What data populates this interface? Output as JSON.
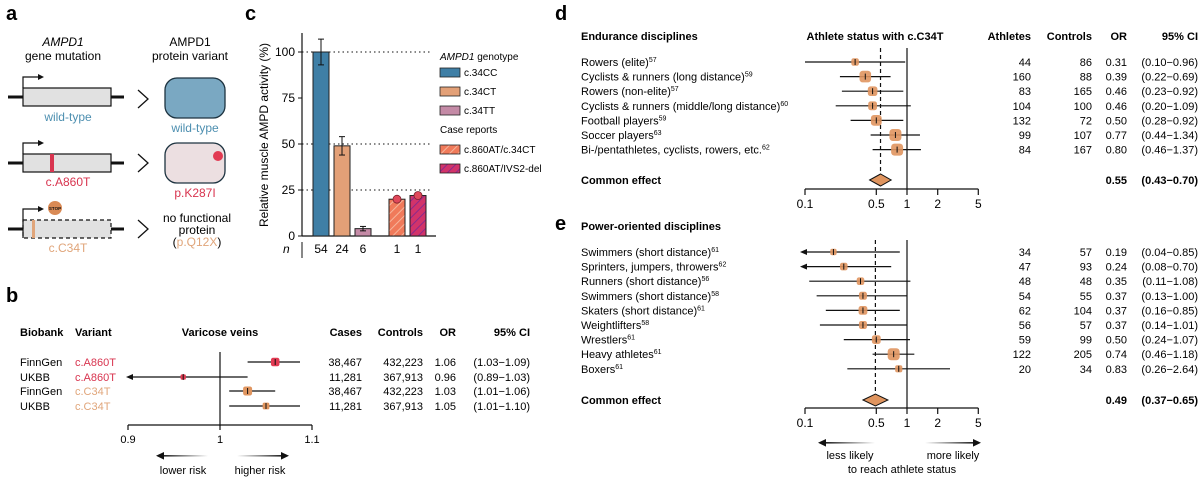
{
  "panels": {
    "a": {
      "label": "a",
      "col1_title_italic": "AMPD1",
      "col1_title": "gene mutation",
      "col2_title_line1": "AMPD1",
      "col2_title_line2": "protein variant",
      "rows": [
        {
          "gene_label": "wild-type",
          "gene_color": "#4d8fb0",
          "protein_label": "wild-type",
          "protein_color": "#4d8fb0"
        },
        {
          "gene_label": "c.A860T",
          "gene_color": "#d8344f",
          "protein_label": "p.K287I",
          "protein_color": "#d8344f"
        },
        {
          "gene_label": "c.C34T",
          "gene_color": "#e0a57a",
          "protein_line1": "no functional",
          "protein_line2": "protein",
          "protein_label": "p.Q12X",
          "protein_color": "#e0a57a",
          "stop_label": "STOP"
        }
      ]
    },
    "b": {
      "label": "b",
      "headers": {
        "biobank": "Biobank",
        "variant": "Variant",
        "plot": "Varicose veins",
        "cases": "Cases",
        "controls": "Controls",
        "or": "OR",
        "ci": "95% CI"
      },
      "arrow_left": "lower risk",
      "arrow_right": "higher risk"
    },
    "c": {
      "label": "c",
      "n_label": "n"
    },
    "d": {
      "label": "d"
    },
    "e": {
      "label": "e"
    }
  },
  "chart_data": [
    {
      "id": "c",
      "type": "bar",
      "title": "",
      "ylabel": "Relative muscle AMPD activity (%)",
      "xlabel": "",
      "ylim": [
        0,
        110
      ],
      "yticks": [
        0,
        25,
        50,
        75,
        100
      ],
      "reference_lines": [
        25,
        50,
        100
      ],
      "categories": [
        "c.34CC",
        "c.34CT",
        "c.34TT",
        "c.860AT/c.34CT",
        "c.860AT/IVS2-del"
      ],
      "values": [
        100,
        49,
        4,
        20,
        22
      ],
      "error": [
        7,
        5,
        1.2,
        null,
        null
      ],
      "n": [
        "54",
        "24",
        "6",
        "1",
        "1"
      ],
      "colors": [
        "#3f7fa6",
        "#e3a077",
        "#c48aa6",
        "#f07a5a",
        "#c5336e"
      ],
      "point_markers": [
        null,
        null,
        null,
        20,
        22
      ],
      "legend": {
        "group1_title": "AMPD1 genotype",
        "group1": [
          "c.34CC",
          "c.34CT",
          "c.34TT"
        ],
        "group2_title": "Case reports",
        "group2": [
          "c.860AT/c.34CT",
          "c.860AT/IVS2-del"
        ],
        "placement": "right"
      }
    },
    {
      "id": "b",
      "type": "forest",
      "xlim": [
        0.9,
        1.1
      ],
      "xticks": [
        "0.9",
        "1",
        "1.1"
      ],
      "rows": [
        {
          "biobank": "FinnGen",
          "variant": "c.A860T",
          "variant_color": "#d8344f",
          "cases": "38,467",
          "controls": "432,223",
          "or": 1.06,
          "or_text": "1.06",
          "lo": 1.03,
          "hi": 1.09,
          "ci_text": "(1.03−1.09)",
          "weight": 0.9
        },
        {
          "biobank": "UKBB",
          "variant": "c.A860T",
          "variant_color": "#d8344f",
          "cases": "11,281",
          "controls": "367,913",
          "or": 0.96,
          "or_text": "0.96",
          "lo": 0.89,
          "hi": 1.03,
          "ci_text": "(0.89−1.03)",
          "weight": 0.25
        },
        {
          "biobank": "FinnGen",
          "variant": "c.C34T",
          "variant_color": "#e0a57a",
          "cases": "38,467",
          "controls": "432,223",
          "or": 1.03,
          "or_text": "1.03",
          "lo": 1.01,
          "hi": 1.06,
          "ci_text": "(1.01−1.06)",
          "weight": 1.0
        },
        {
          "biobank": "UKBB",
          "variant": "c.C34T",
          "variant_color": "#e0a57a",
          "cases": "11,281",
          "controls": "367,913",
          "or": 1.05,
          "or_text": "1.05",
          "lo": 1.01,
          "hi": 1.1,
          "ci_text": "(1.01−1.10)",
          "weight": 0.55
        }
      ]
    },
    {
      "id": "d",
      "type": "forest",
      "title": "Endurance disciplines",
      "plot_header": "Athlete status with c.C34T",
      "headers": {
        "athletes": "Athletes",
        "controls": "Controls",
        "or": "OR",
        "ci": "95% CI"
      },
      "scale": "log",
      "xlim": [
        0.1,
        5
      ],
      "xticks": [
        "0.1",
        "0.5",
        "1",
        "2",
        "5"
      ],
      "rows": [
        {
          "label": "Rowers (elite)",
          "ref": "57",
          "athletes": "44",
          "controls": "86",
          "or": 0.31,
          "or_text": "0.31",
          "lo": 0.1,
          "hi": 0.96,
          "ci_text": "(0.10−0.96)",
          "weight": 0.45
        },
        {
          "label": "Cyclists & runners (long distance)",
          "ref": "59",
          "athletes": "160",
          "controls": "88",
          "or": 0.39,
          "or_text": "0.39",
          "lo": 0.22,
          "hi": 0.69,
          "ci_text": "(0.22−0.69)",
          "weight": 0.95
        },
        {
          "label": "Rowers (non-elite)",
          "ref": "57",
          "athletes": "83",
          "controls": "165",
          "or": 0.46,
          "or_text": "0.46",
          "lo": 0.23,
          "hi": 0.92,
          "ci_text": "(0.23−0.92)",
          "weight": 0.7
        },
        {
          "label": "Cyclists & runners (middle/long distance)",
          "ref": "60",
          "athletes": "104",
          "controls": "100",
          "or": 0.46,
          "or_text": "0.46",
          "lo": 0.2,
          "hi": 1.09,
          "ci_text": "(0.20−1.09)",
          "weight": 0.6
        },
        {
          "label": "Football players",
          "ref": "59",
          "athletes": "132",
          "controls": "72",
          "or": 0.5,
          "or_text": "0.50",
          "lo": 0.28,
          "hi": 0.92,
          "ci_text": "(0.28−0.92)",
          "weight": 0.85
        },
        {
          "label": "Soccer players",
          "ref": "63",
          "athletes": "99",
          "controls": "107",
          "or": 0.77,
          "or_text": "0.77",
          "lo": 0.44,
          "hi": 1.34,
          "ci_text": "(0.44−1.34)",
          "weight": 1.0
        },
        {
          "label": "Bi-/pentathletes, cyclists, rowers, etc.",
          "ref": "62",
          "athletes": "84",
          "controls": "167",
          "or": 0.8,
          "or_text": "0.80",
          "lo": 0.46,
          "hi": 1.37,
          "ci_text": "(0.46−1.37)",
          "weight": 1.0
        }
      ],
      "common": {
        "label": "Common effect",
        "or": 0.55,
        "or_text": "0.55",
        "lo": 0.43,
        "hi": 0.7,
        "ci_text": "(0.43−0.70)"
      }
    },
    {
      "id": "e",
      "type": "forest",
      "title": "Power-oriented disciplines",
      "scale": "log",
      "xlim": [
        0.1,
        5
      ],
      "xticks": [
        "0.1",
        "0.5",
        "1",
        "2",
        "5"
      ],
      "rows": [
        {
          "label": "Swimmers (short distance)",
          "ref": "61",
          "athletes": "34",
          "controls": "57",
          "or": 0.19,
          "or_text": "0.19",
          "lo": 0.04,
          "hi": 0.85,
          "ci_text": "(0.04−0.85)",
          "weight": 0.3
        },
        {
          "label": "Sprinters, jumpers, throwers",
          "ref": "62",
          "athletes": "47",
          "controls": "93",
          "or": 0.24,
          "or_text": "0.24",
          "lo": 0.08,
          "hi": 0.7,
          "ci_text": "(0.08−0.70)",
          "weight": 0.45
        },
        {
          "label": "Runners (short distance)",
          "ref": "56",
          "athletes": "48",
          "controls": "48",
          "or": 0.35,
          "or_text": "0.35",
          "lo": 0.11,
          "hi": 1.08,
          "ci_text": "(0.11−1.08)",
          "weight": 0.45
        },
        {
          "label": "Swimmers (short distance)",
          "ref": "58",
          "athletes": "54",
          "controls": "55",
          "or": 0.37,
          "or_text": "0.37",
          "lo": 0.13,
          "hi": 1.0,
          "ci_text": "(0.13−1.00)",
          "weight": 0.5
        },
        {
          "label": "Skaters (short distance)",
          "ref": "61",
          "athletes": "62",
          "controls": "104",
          "or": 0.37,
          "or_text": "0.37",
          "lo": 0.16,
          "hi": 0.85,
          "ci_text": "(0.16−0.85)",
          "weight": 0.6
        },
        {
          "label": "Weightlifters",
          "ref": "58",
          "athletes": "56",
          "controls": "57",
          "or": 0.37,
          "or_text": "0.37",
          "lo": 0.14,
          "hi": 1.01,
          "ci_text": "(0.14−1.01)",
          "weight": 0.5
        },
        {
          "label": "Wrestlers",
          "ref": "61",
          "athletes": "59",
          "controls": "99",
          "or": 0.5,
          "or_text": "0.50",
          "lo": 0.24,
          "hi": 1.07,
          "ci_text": "(0.24−1.07)",
          "weight": 0.6
        },
        {
          "label": "Heavy athletes",
          "ref": "61",
          "athletes": "122",
          "controls": "205",
          "or": 0.74,
          "or_text": "0.74",
          "lo": 0.46,
          "hi": 1.18,
          "ci_text": "(0.46−1.18)",
          "weight": 1.0
        },
        {
          "label": "Boxers",
          "ref": "61",
          "athletes": "20",
          "controls": "34",
          "or": 0.83,
          "or_text": "0.83",
          "lo": 0.26,
          "hi": 2.64,
          "ci_text": "(0.26−2.64)",
          "weight": 0.4
        }
      ],
      "common": {
        "label": "Common effect",
        "or": 0.49,
        "or_text": "0.49",
        "lo": 0.37,
        "hi": 0.65,
        "ci_text": "(0.37−0.65)"
      },
      "arrow_left": "less likely",
      "arrow_right": "more likely",
      "arrow_caption": "to reach athlete status"
    }
  ]
}
